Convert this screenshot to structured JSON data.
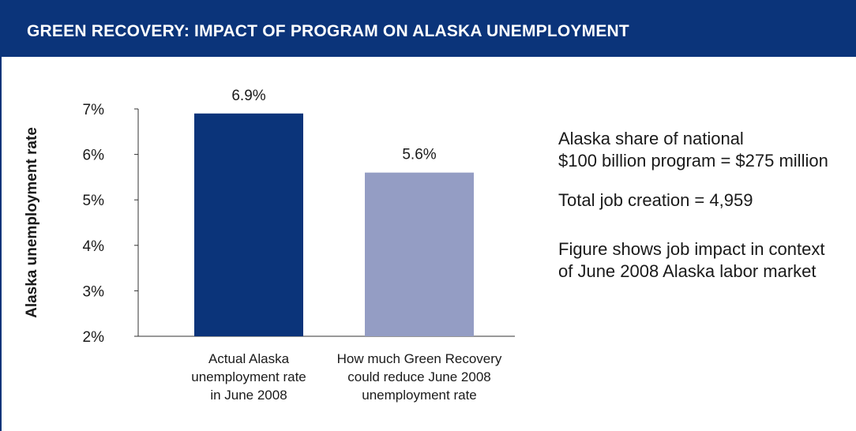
{
  "header": {
    "title": "GREEN RECOVERY: IMPACT OF PROGRAM ON ALASKA UNEMPLOYMENT"
  },
  "colors": {
    "brand_navy": "#0b347a",
    "bar_actual": "#0b347a",
    "bar_reduced": "#949dc4",
    "axis": "#333333",
    "text": "#1a1a1a"
  },
  "chart_data": {
    "type": "bar",
    "ylabel": "Alaska unemployment rate",
    "xlabel": "",
    "ylim": [
      2,
      7
    ],
    "yticks": [
      2,
      3,
      4,
      5,
      6,
      7
    ],
    "ytick_labels": [
      "2%",
      "3%",
      "4%",
      "5%",
      "6%",
      "7%"
    ],
    "grid": false,
    "categories": [
      "Actual Alaska\nunemployment rate\nin June 2008",
      "How much Green Recovery\ncould reduce June 2008\nunemployment rate"
    ],
    "values": [
      6.9,
      5.6
    ],
    "data_labels": [
      "6.9%",
      "5.6%"
    ]
  },
  "notes": [
    "Alaska share of national\n$100 billion program = $275 million",
    "Total job creation = 4,959",
    "Figure shows job impact in context\nof June 2008 Alaska labor market"
  ]
}
